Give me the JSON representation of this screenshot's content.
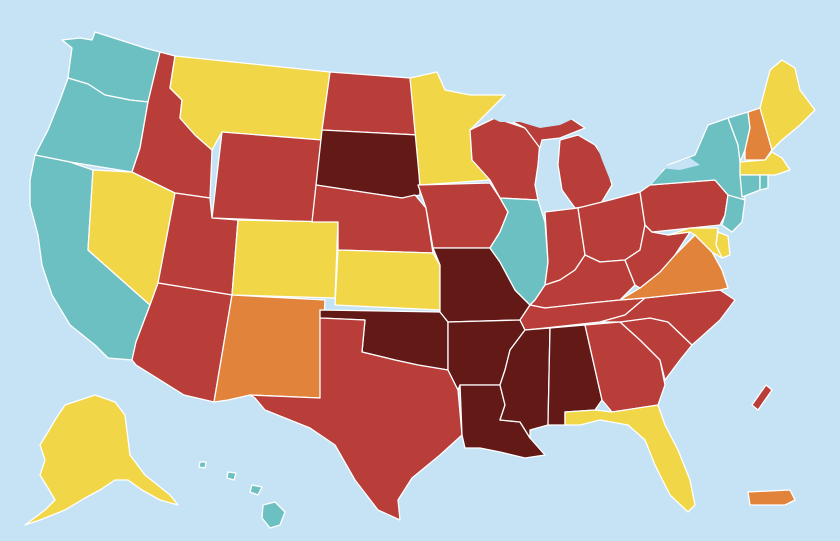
{
  "map": {
    "background": "#c6e3f5",
    "lake_color": "#c6e3f5",
    "border_color": "#ffffff",
    "categories": [
      {
        "id": "teal",
        "color": "#6cc0c2"
      },
      {
        "id": "yellow",
        "color": "#f1d648"
      },
      {
        "id": "orange",
        "color": "#e1833a"
      },
      {
        "id": "red",
        "color": "#b93d38"
      },
      {
        "id": "dark-red",
        "color": "#631a17"
      }
    ],
    "regions": [
      {
        "id": "WA",
        "category": "teal"
      },
      {
        "id": "OR",
        "category": "teal"
      },
      {
        "id": "CA",
        "category": "teal"
      },
      {
        "id": "NV",
        "category": "yellow"
      },
      {
        "id": "ID",
        "category": "red"
      },
      {
        "id": "MT",
        "category": "yellow"
      },
      {
        "id": "WY",
        "category": "red"
      },
      {
        "id": "UT",
        "category": "red"
      },
      {
        "id": "AZ",
        "category": "red"
      },
      {
        "id": "CO",
        "category": "yellow"
      },
      {
        "id": "NM",
        "category": "orange"
      },
      {
        "id": "ND",
        "category": "red"
      },
      {
        "id": "SD",
        "category": "dark-red"
      },
      {
        "id": "NE",
        "category": "red"
      },
      {
        "id": "KS",
        "category": "yellow"
      },
      {
        "id": "OK",
        "category": "dark-red"
      },
      {
        "id": "TX",
        "category": "red"
      },
      {
        "id": "MN",
        "category": "yellow"
      },
      {
        "id": "IA",
        "category": "red"
      },
      {
        "id": "MO",
        "category": "dark-red"
      },
      {
        "id": "AR",
        "category": "dark-red"
      },
      {
        "id": "LA",
        "category": "dark-red"
      },
      {
        "id": "WI",
        "category": "red"
      },
      {
        "id": "IL",
        "category": "teal"
      },
      {
        "id": "MI",
        "category": "red"
      },
      {
        "id": "IN",
        "category": "red"
      },
      {
        "id": "OH",
        "category": "red"
      },
      {
        "id": "KY",
        "category": "red"
      },
      {
        "id": "TN",
        "category": "red"
      },
      {
        "id": "MS",
        "category": "dark-red"
      },
      {
        "id": "AL",
        "category": "dark-red"
      },
      {
        "id": "GA",
        "category": "red"
      },
      {
        "id": "FL",
        "category": "yellow"
      },
      {
        "id": "SC",
        "category": "red"
      },
      {
        "id": "NC",
        "category": "red"
      },
      {
        "id": "VA",
        "category": "orange"
      },
      {
        "id": "WV",
        "category": "red"
      },
      {
        "id": "PA",
        "category": "red"
      },
      {
        "id": "NY",
        "category": "teal"
      },
      {
        "id": "NJ",
        "category": "teal"
      },
      {
        "id": "DE",
        "category": "yellow"
      },
      {
        "id": "MD",
        "category": "yellow"
      },
      {
        "id": "VT",
        "category": "teal"
      },
      {
        "id": "NH",
        "category": "orange"
      },
      {
        "id": "ME",
        "category": "yellow"
      },
      {
        "id": "MA",
        "category": "yellow"
      },
      {
        "id": "CT",
        "category": "teal"
      },
      {
        "id": "RI",
        "category": "teal"
      },
      {
        "id": "AK",
        "category": "yellow"
      },
      {
        "id": "HI",
        "category": "teal"
      },
      {
        "id": "PR",
        "category": "orange"
      },
      {
        "id": "NC-OUTER-BANKS",
        "category": "red"
      }
    ]
  }
}
